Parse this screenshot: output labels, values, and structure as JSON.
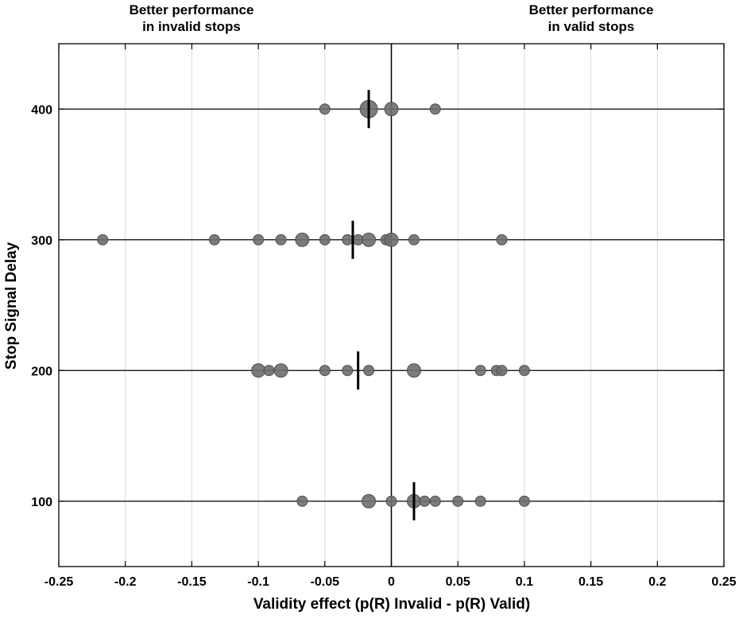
{
  "chart_data": {
    "type": "scatter",
    "title": "",
    "xlabel": "Validity effect (p(R) Invalid - p(R) Valid)",
    "ylabel": "Stop Signal Delay",
    "xlim": [
      -0.25,
      0.25
    ],
    "ylim": [
      50,
      450
    ],
    "xticks": [
      -0.25,
      -0.2,
      -0.15,
      -0.1,
      -0.05,
      0,
      0.05,
      0.1,
      0.15,
      0.2,
      0.25
    ],
    "xtick_labels": [
      "-0.25",
      "-0.2",
      "-0.15",
      "-0.1",
      "-0.05",
      "0",
      "0.05",
      "0.1",
      "0.15",
      "0.2",
      "0.25"
    ],
    "yticks": [
      100,
      200,
      300,
      400
    ],
    "ytick_labels": [
      "100",
      "200",
      "300",
      "400"
    ],
    "grid": "vertical",
    "annotations": {
      "left_line1": "Better performance",
      "left_line2": "in invalid stops",
      "right_line1": "Better performance",
      "right_line2": "in valid stops"
    },
    "colors": {
      "marker": "#6e6e6e",
      "marker_edge": "#505050",
      "grid": "#d9d9d9",
      "axis": "#000000"
    },
    "series": [
      {
        "y": 400,
        "mean": -0.017,
        "points": [
          {
            "x": -0.05,
            "size": 1
          },
          {
            "x": -0.017,
            "size": 3
          },
          {
            "x": 0.0,
            "size": 2
          },
          {
            "x": 0.033,
            "size": 1
          }
        ]
      },
      {
        "y": 300,
        "mean": -0.029,
        "points": [
          {
            "x": -0.217,
            "size": 1
          },
          {
            "x": -0.133,
            "size": 1
          },
          {
            "x": -0.1,
            "size": 1
          },
          {
            "x": -0.083,
            "size": 1
          },
          {
            "x": -0.067,
            "size": 2
          },
          {
            "x": -0.05,
            "size": 1
          },
          {
            "x": -0.033,
            "size": 1
          },
          {
            "x": -0.025,
            "size": 1
          },
          {
            "x": -0.017,
            "size": 2
          },
          {
            "x": -0.004,
            "size": 1
          },
          {
            "x": 0.0,
            "size": 2
          },
          {
            "x": 0.017,
            "size": 1
          },
          {
            "x": 0.083,
            "size": 1
          }
        ]
      },
      {
        "y": 200,
        "mean": -0.025,
        "points": [
          {
            "x": -0.1,
            "size": 2
          },
          {
            "x": -0.092,
            "size": 1
          },
          {
            "x": -0.083,
            "size": 2
          },
          {
            "x": -0.05,
            "size": 1
          },
          {
            "x": -0.033,
            "size": 1
          },
          {
            "x": -0.017,
            "size": 1
          },
          {
            "x": 0.017,
            "size": 2
          },
          {
            "x": 0.067,
            "size": 1
          },
          {
            "x": 0.079,
            "size": 1
          },
          {
            "x": 0.083,
            "size": 1
          },
          {
            "x": 0.1,
            "size": 1
          }
        ]
      },
      {
        "y": 100,
        "mean": 0.017,
        "points": [
          {
            "x": -0.067,
            "size": 1
          },
          {
            "x": -0.017,
            "size": 2
          },
          {
            "x": 0.0,
            "size": 1
          },
          {
            "x": 0.017,
            "size": 2
          },
          {
            "x": 0.025,
            "size": 1
          },
          {
            "x": 0.033,
            "size": 1
          },
          {
            "x": 0.05,
            "size": 1
          },
          {
            "x": 0.067,
            "size": 1
          },
          {
            "x": 0.1,
            "size": 1
          }
        ]
      }
    ]
  }
}
